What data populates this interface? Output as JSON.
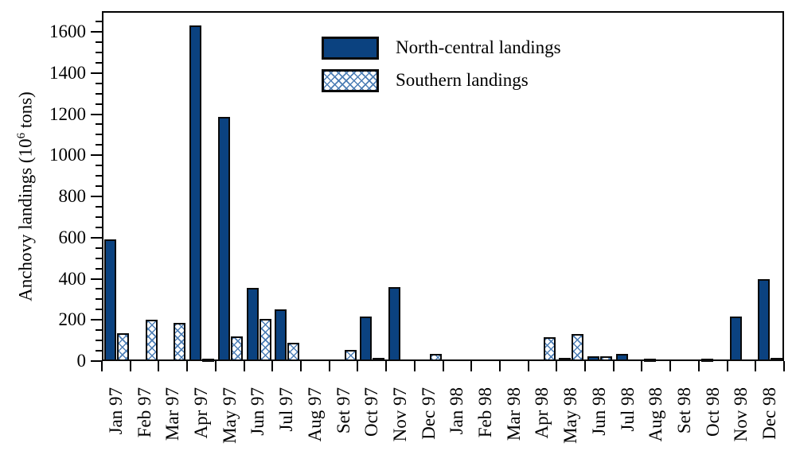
{
  "chart_data": {
    "type": "bar",
    "title": "",
    "ylabel": "Anchovy landings (10⁶ tons)",
    "ylabel_parts": {
      "prefix": "Anchovy landings (10",
      "sup": "6",
      "suffix": " tons)"
    },
    "xlabel": "",
    "ylim": [
      0,
      1700
    ],
    "y_major_ticks": [
      0,
      200,
      400,
      600,
      800,
      1000,
      1200,
      1400,
      1600
    ],
    "y_minor_step": 50,
    "y_minor_max": 1650,
    "grid": "off",
    "legend_position": "upper-left-of-center",
    "categories": [
      "Jan 97",
      "Feb 97",
      "Mar 97",
      "Apr 97",
      "May 97",
      "Jun 97",
      "Jul 97",
      "Aug 97",
      "Set 97",
      "Oct 97",
      "Nov 97",
      "Dec 97",
      "Jan 98",
      "Feb 98",
      "Mar 98",
      "Apr 98",
      "May 98",
      "Jun 98",
      "Jul 98",
      "Aug 98",
      "Set 98",
      "Oct 98",
      "Nov 98",
      "Dec 98"
    ],
    "series": [
      {
        "name": "North-central landings",
        "style": "solid",
        "color": "#0b4280",
        "values": [
          590,
          0,
          0,
          1630,
          1185,
          355,
          250,
          0,
          0,
          215,
          360,
          0,
          0,
          0,
          0,
          0,
          15,
          25,
          35,
          10,
          0,
          10,
          215,
          400
        ]
      },
      {
        "name": "Southern landings",
        "style": "crosshatch",
        "hatch_color": "#4d7eb5",
        "values": [
          135,
          200,
          185,
          8,
          120,
          205,
          90,
          0,
          55,
          15,
          0,
          35,
          0,
          0,
          0,
          115,
          130,
          25,
          0,
          0,
          0,
          0,
          0,
          15
        ]
      }
    ]
  },
  "colors": {
    "north_central_fill": "#0b4280",
    "hatch_line": "#4d7eb5",
    "axis": "#000000",
    "background": "#ffffff"
  }
}
